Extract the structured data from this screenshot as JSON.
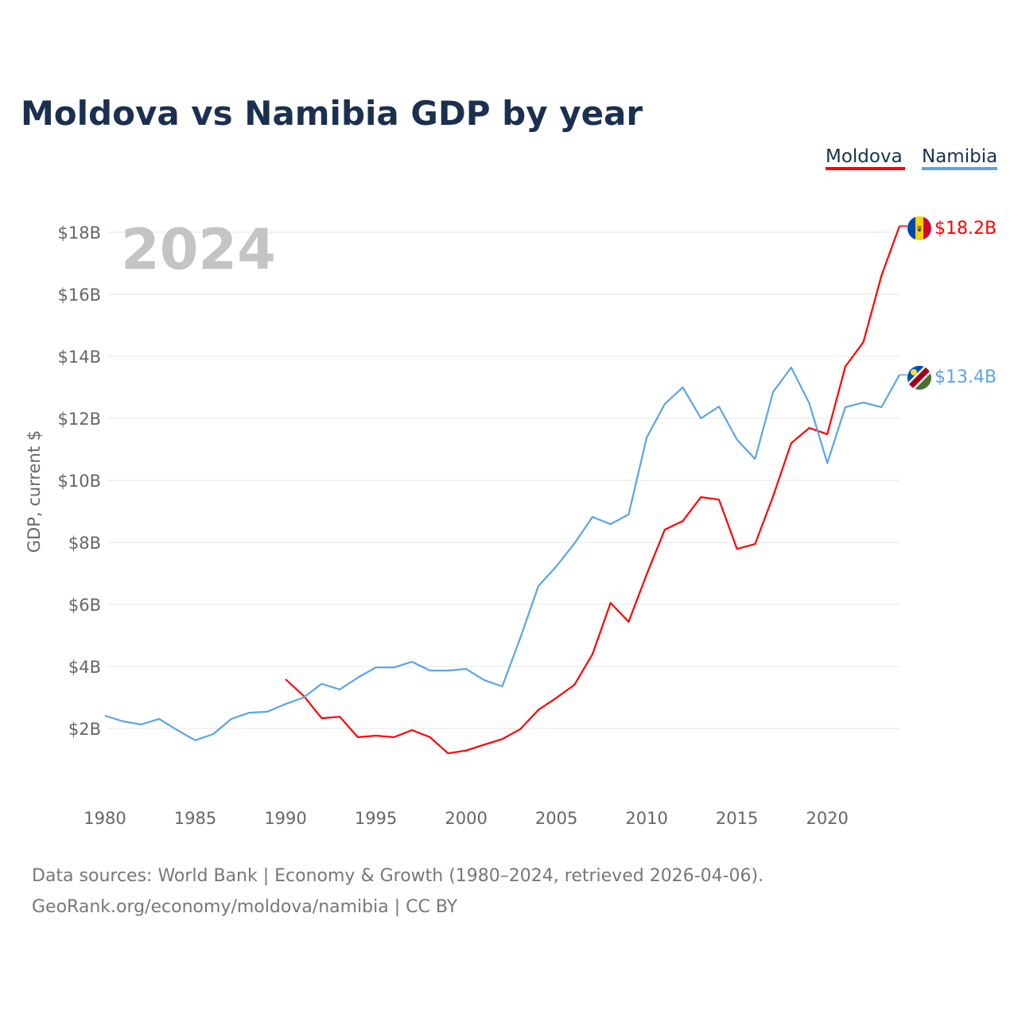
{
  "chart_data": {
    "type": "line",
    "title": "Moldova vs Namibia GDP by year",
    "ylabel": "GDP, current $",
    "xlabel": "",
    "year_label": "2024",
    "xlim": [
      1980,
      2024
    ],
    "ylim": [
      0,
      18.5
    ],
    "x_ticks": [
      1980,
      1985,
      1990,
      1995,
      2000,
      2005,
      2010,
      2015,
      2020
    ],
    "y_ticks": [
      2,
      4,
      6,
      8,
      10,
      12,
      14,
      16,
      18
    ],
    "y_tick_labels": [
      "$2B",
      "$4B",
      "$6B",
      "$8B",
      "$10B",
      "$12B",
      "$14B",
      "$16B",
      "$18B"
    ],
    "grid": true,
    "legend_position": "top-right",
    "series": [
      {
        "name": "Moldova",
        "color": "#ff0000",
        "end_label": "$18.2B",
        "flag": "moldova-flag",
        "start_year": 1990,
        "values": [
          3.59,
          3.05,
          2.33,
          2.38,
          1.72,
          1.77,
          1.72,
          1.95,
          1.72,
          1.2,
          1.29,
          1.48,
          1.66,
          1.98,
          2.6,
          2.99,
          3.41,
          4.4,
          6.05,
          5.44,
          6.97,
          8.41,
          8.69,
          9.46,
          9.38,
          7.79,
          7.95,
          9.49,
          11.2,
          11.69,
          11.49,
          13.67,
          14.46,
          16.6,
          18.2
        ]
      },
      {
        "name": "Namibia",
        "color": "#5ba4ea",
        "end_label": "$13.4B",
        "flag": "namibia-flag",
        "start_year": 1980,
        "values": [
          2.41,
          2.23,
          2.13,
          2.31,
          1.95,
          1.62,
          1.82,
          2.31,
          2.51,
          2.54,
          2.79,
          3.0,
          3.44,
          3.26,
          3.64,
          3.97,
          3.97,
          4.15,
          3.87,
          3.87,
          3.92,
          3.56,
          3.36,
          4.92,
          6.59,
          7.23,
          7.97,
          8.82,
          8.59,
          8.9,
          11.38,
          12.46,
          13.0,
          12.0,
          12.38,
          11.31,
          10.69,
          12.85,
          13.64,
          12.49,
          10.56,
          12.36,
          12.51,
          12.36,
          13.4
        ]
      }
    ]
  },
  "footer": {
    "line1": "Data sources: World Bank | Economy & Growth (1980–2024, retrieved 2026-04-06).",
    "line2": "GeoRank.org/economy/moldova/namibia | CC BY"
  }
}
